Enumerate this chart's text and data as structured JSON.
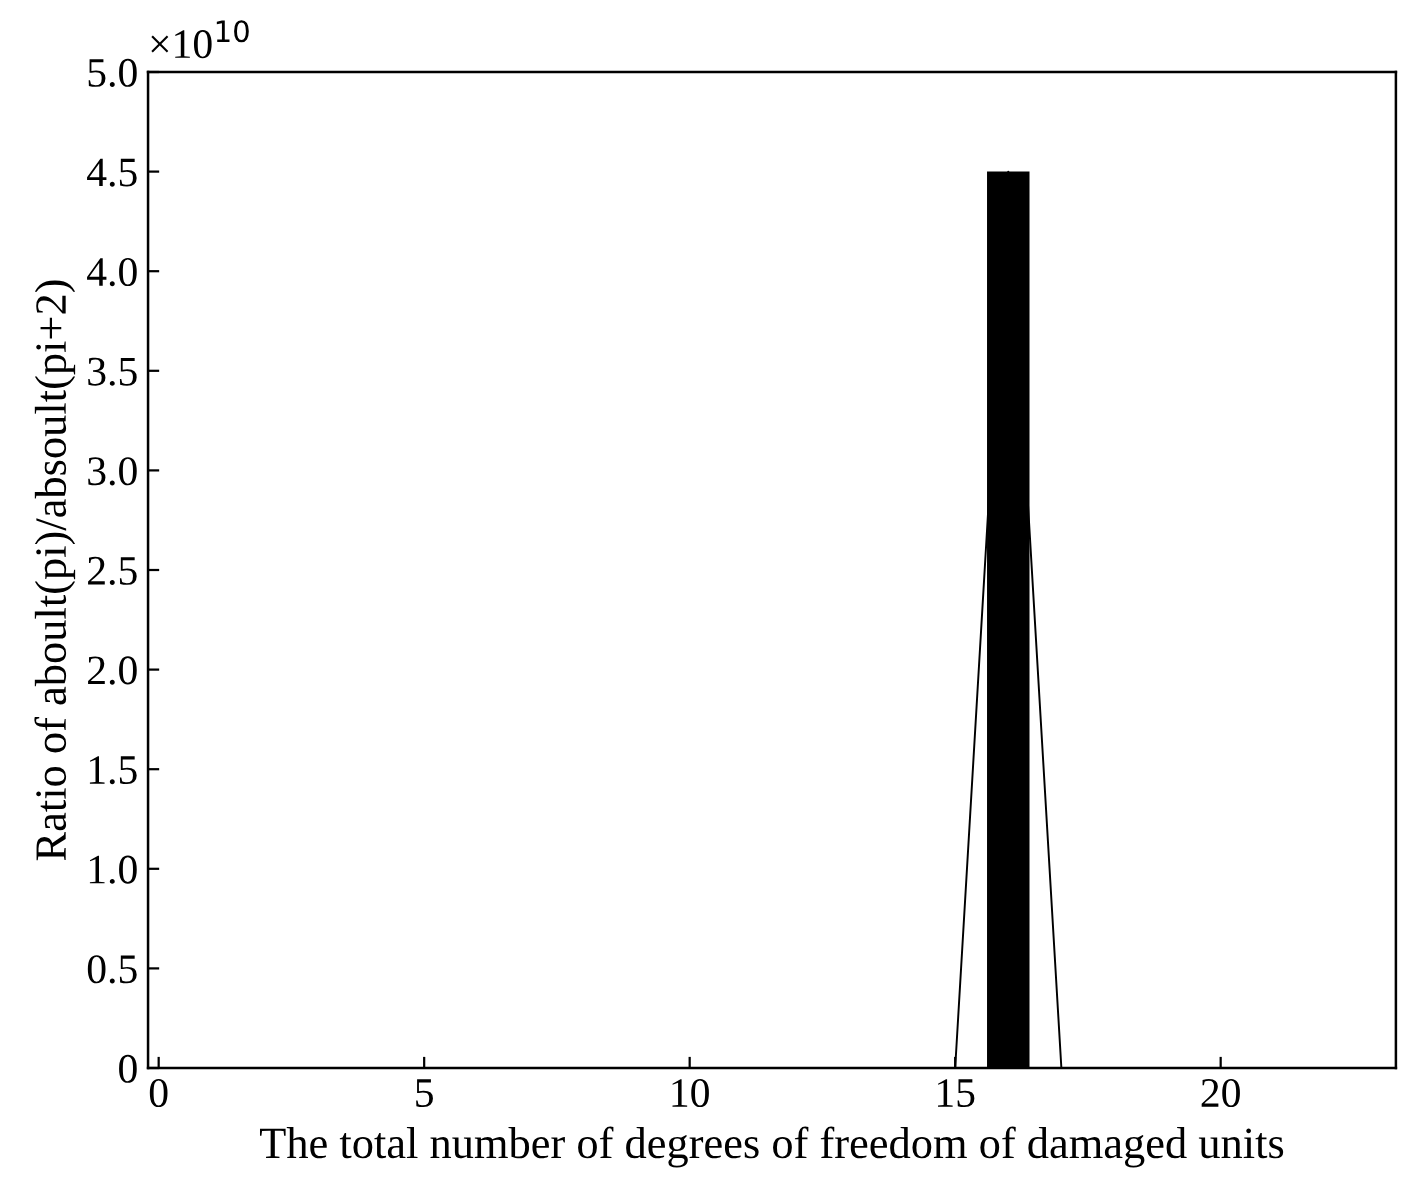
{
  "chart_data": {
    "type": "bar",
    "xlabel": "The total number of degrees of freedom of damaged units",
    "ylabel": "Ratio of aboult(pi)/absoult(pi+2)",
    "annotations": [
      "×10$^{10}$"
    ],
    "series": [
      {
        "color": "#000000",
        "x": [
          16
        ],
        "values": [
          4.5
        ]
      },
      {
        "type": "line",
        "color": "#000000",
        "x": [
          1,
          2,
          3,
          4,
          5,
          6,
          7,
          8,
          9,
          10,
          11,
          12,
          13,
          14,
          15,
          16,
          17,
          18,
          19,
          20,
          21,
          22,
          23
        ],
        "values": [
          0,
          0,
          0,
          0,
          0,
          0,
          0,
          0,
          0,
          0,
          0,
          0,
          0,
          0,
          0,
          4.5,
          0,
          0,
          0,
          0,
          0,
          0,
          0
        ]
      }
    ],
    "xlim": [
      -0.2,
      23.3
    ],
    "xticks": [
      0,
      5,
      10,
      15,
      20
    ],
    "ylim": [
      0,
      5.0
    ],
    "yticks": [
      0,
      0.5,
      {
        "value": 1,
        "label": "1.0"
      },
      1.5,
      {
        "value": 2,
        "label": "2.0"
      },
      2.5,
      {
        "value": 3,
        "label": "3.0"
      },
      3.5,
      {
        "value": 4,
        "label": "4.0"
      },
      4.5,
      {
        "value": 5,
        "label": "5.0"
      }
    ],
    "grid": false
  }
}
